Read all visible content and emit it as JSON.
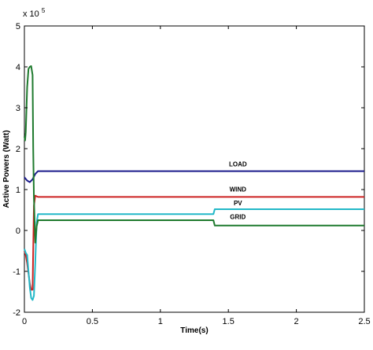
{
  "chart_data": {
    "type": "line",
    "xlabel": "Time(s)",
    "ylabel": "Active Powers (Watt)",
    "exponent_label": "x 10",
    "exponent_power": "5",
    "xlim": [
      0,
      2.5
    ],
    "ylim": [
      -2,
      5
    ],
    "x_ticks": [
      "0",
      "0.5",
      "1",
      "1.5",
      "2",
      "2.5"
    ],
    "y_ticks": [
      "-2",
      "-1",
      "0",
      "1",
      "2",
      "3",
      "4",
      "5"
    ],
    "grid": false,
    "series": [
      {
        "name": "LOAD",
        "color": "#1c1c8c",
        "x": [
          0,
          0.02,
          0.04,
          0.06,
          0.08,
          0.1,
          0.12,
          0.5,
          1.0,
          1.5,
          2.0,
          2.5
        ],
        "y": [
          1.3,
          1.22,
          1.18,
          1.25,
          1.38,
          1.45,
          1.45,
          1.45,
          1.45,
          1.45,
          1.45,
          1.45
        ]
      },
      {
        "name": "WIND",
        "color": "#cc2222",
        "x": [
          0,
          0.01,
          0.02,
          0.04,
          0.05,
          0.06,
          0.07,
          0.08,
          0.1,
          0.12,
          0.5,
          1.0,
          1.5,
          2.0,
          2.5
        ],
        "y": [
          -0.5,
          -0.6,
          -0.8,
          -1.3,
          -1.45,
          -1.45,
          0.6,
          0.85,
          0.82,
          0.82,
          0.82,
          0.82,
          0.82,
          0.82,
          0.82
        ]
      },
      {
        "name": "PV",
        "color": "#22b8c8",
        "x": [
          0,
          0.01,
          0.02,
          0.03,
          0.04,
          0.05,
          0.06,
          0.07,
          0.08,
          0.09,
          0.1,
          0.12,
          0.5,
          1.0,
          1.39,
          1.4,
          1.8,
          2.5
        ],
        "y": [
          -0.45,
          -0.55,
          -0.6,
          -1.0,
          -1.4,
          -1.65,
          -1.7,
          -1.6,
          -0.8,
          0.2,
          0.4,
          0.4,
          0.4,
          0.4,
          0.4,
          0.52,
          0.52,
          0.52
        ]
      },
      {
        "name": "GRID",
        "color": "#1f7a2e",
        "x": [
          0,
          0.005,
          0.01,
          0.02,
          0.03,
          0.04,
          0.05,
          0.06,
          0.065,
          0.07,
          0.08,
          0.09,
          0.1,
          0.12,
          0.5,
          1.0,
          1.39,
          1.4,
          1.8,
          2.5
        ],
        "y": [
          2.3,
          2.2,
          2.4,
          3.5,
          3.95,
          4.0,
          4.02,
          3.8,
          2.0,
          0.8,
          -0.3,
          0.1,
          0.25,
          0.25,
          0.25,
          0.25,
          0.25,
          0.12,
          0.12,
          0.12
        ]
      }
    ],
    "annotations": [
      {
        "text": "LOAD",
        "x": 1.57,
        "y": 1.57
      },
      {
        "text": "WIND",
        "x": 1.57,
        "y": 0.95
      },
      {
        "text": "PV",
        "x": 1.57,
        "y": 0.62
      },
      {
        "text": "GRID",
        "x": 1.57,
        "y": 0.28
      }
    ]
  }
}
